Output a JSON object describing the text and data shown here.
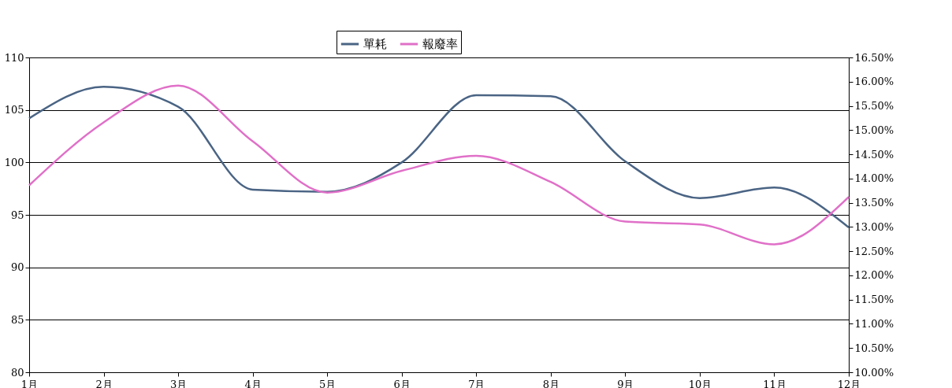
{
  "chart_data": {
    "type": "line",
    "categories": [
      "1月",
      "2月",
      "3月",
      "4月",
      "5月",
      "6月",
      "7月",
      "8月",
      "9月",
      "10月",
      "11月",
      "12月"
    ],
    "series": [
      {
        "name": "單耗",
        "color": "#4a6484",
        "values": [
          104.2,
          107.2,
          105.3,
          97.4,
          97.2,
          100.0,
          106.4,
          106.3,
          100.1,
          96.6,
          97.6,
          93.8
        ]
      },
      {
        "name": "報廢率",
        "color": "#e070c8",
        "axis": "y2",
        "values": [
          13.86,
          15.16,
          15.92,
          14.77,
          13.71,
          14.16,
          14.47,
          13.93,
          13.11,
          13.05,
          12.64,
          13.62
        ]
      }
    ],
    "ylim": [
      80,
      110
    ],
    "yticks": [
      80,
      85,
      90,
      95,
      100,
      105,
      110
    ],
    "y2lim": [
      10,
      16.5
    ],
    "y2ticks": [
      {
        "value": 10,
        "label": "10.00%"
      },
      {
        "value": 10.5,
        "label": "10.50%"
      },
      {
        "value": 11,
        "label": "11.00%"
      },
      {
        "value": 11.5,
        "label": "11.50%"
      },
      {
        "value": 12,
        "label": "12.00%"
      },
      {
        "value": 12.5,
        "label": "12.50%"
      },
      {
        "value": 13,
        "label": "13.00%"
      },
      {
        "value": 13.5,
        "label": "13.50%"
      },
      {
        "value": 14,
        "label": "14.00%"
      },
      {
        "value": 14.5,
        "label": "14.50%"
      },
      {
        "value": 15,
        "label": "15.00%"
      },
      {
        "value": 15.5,
        "label": "15.50%"
      },
      {
        "value": 16,
        "label": "16.00%"
      },
      {
        "value": 16.5,
        "label": "16.50%"
      }
    ],
    "grid": "y",
    "legend": "top",
    "marker": "none",
    "line_style": "solid"
  }
}
